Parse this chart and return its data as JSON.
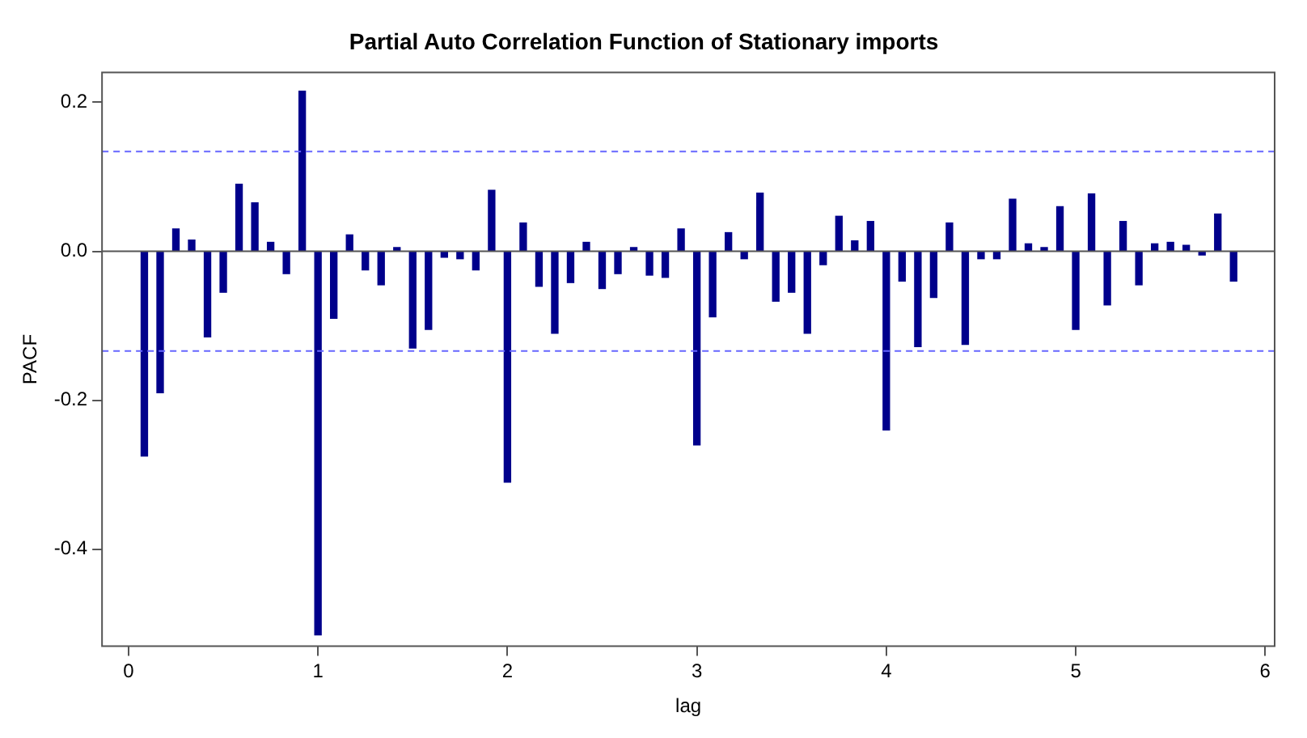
{
  "chart_data": {
    "type": "bar",
    "title": "Partial Auto Correlation Function of Stationary imports",
    "xlabel": "lag",
    "ylabel": "PACF",
    "x": [
      0.0833,
      0.1667,
      0.25,
      0.3333,
      0.4167,
      0.5,
      0.5833,
      0.6667,
      0.75,
      0.8333,
      0.9167,
      1,
      1.0833,
      1.1667,
      1.25,
      1.3333,
      1.4167,
      1.5,
      1.5833,
      1.6667,
      1.75,
      1.8333,
      1.9167,
      2,
      2.0833,
      2.1667,
      2.25,
      2.3333,
      2.4167,
      2.5,
      2.5833,
      2.6667,
      2.75,
      2.8333,
      2.9167,
      3,
      3.0833,
      3.1667,
      3.25,
      3.3333,
      3.4167,
      3.5,
      3.5833,
      3.6667,
      3.75,
      3.8333,
      3.9167,
      4,
      4.0833,
      4.1667,
      4.25,
      4.3333,
      4.4167,
      4.5,
      4.5833,
      4.6667,
      4.75,
      4.8333,
      4.9167,
      5,
      5.0833,
      5.1667,
      5.25,
      5.3333,
      5.4167,
      5.5,
      5.5833,
      5.6667,
      5.75,
      5.8333
    ],
    "series": [
      {
        "color": "#00008b",
        "values": [
          -0.275,
          -0.19,
          0.03,
          0.015,
          -0.115,
          -0.055,
          0.09,
          0.065,
          0.012,
          -0.03,
          0.215,
          -0.515,
          -0.09,
          0.022,
          -0.025,
          -0.045,
          0.005,
          -0.13,
          -0.105,
          -0.008,
          -0.01,
          -0.025,
          0.082,
          -0.31,
          0.038,
          -0.047,
          -0.11,
          -0.042,
          0.012,
          -0.05,
          -0.03,
          0.005,
          -0.032,
          -0.035,
          0.03,
          -0.26,
          -0.088,
          0.025,
          -0.01,
          0.078,
          -0.067,
          -0.055,
          -0.11,
          -0.018,
          0.047,
          0.014,
          0.04,
          -0.24,
          -0.04,
          -0.128,
          -0.062,
          0.038,
          -0.125,
          -0.01,
          -0.01,
          0.07,
          0.01,
          0.005,
          0.06,
          -0.105,
          0.077,
          -0.072,
          0.04,
          -0.045,
          0.01,
          0.012,
          0.008,
          -0.005,
          0.05,
          -0.04
        ]
      }
    ],
    "xlim": [
      -0.14,
      6.05
    ],
    "xticks": [
      0,
      1,
      2,
      3,
      4,
      5,
      6
    ],
    "ylim": [
      -0.53,
      0.24
    ],
    "yticks": [
      {
        "value": -0.4,
        "label": "-0.4"
      },
      {
        "value": -0.2,
        "label": "-0.2"
      },
      {
        "value": 0,
        "label": "0.0"
      },
      {
        "value": 0.2,
        "label": "0.2"
      }
    ],
    "ref_lines": [
      {
        "axis": "y",
        "value": 0,
        "color": "#555555",
        "line_style": "solid"
      },
      {
        "axis": "y",
        "value": 0.134,
        "color": "#6666ff",
        "line_style": "dashed"
      },
      {
        "axis": "y",
        "value": -0.134,
        "color": "#6666ff",
        "line_style": "dashed"
      }
    ],
    "grid": false,
    "legend": false
  }
}
